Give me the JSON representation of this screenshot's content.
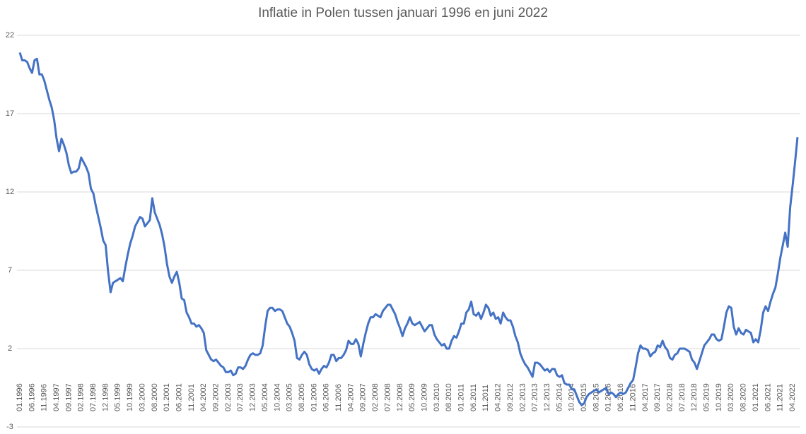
{
  "chart_data": {
    "type": "line",
    "title": "Inflatie in Polen tussen januari 1996 en juni 2022",
    "ylim": [
      -3,
      22
    ],
    "yticks": [
      -3,
      2,
      7,
      12,
      17,
      22
    ],
    "grid": true,
    "categories": [
      "01.1996",
      null,
      null,
      null,
      null,
      "06.1996",
      null,
      null,
      null,
      null,
      "11.1996",
      null,
      null,
      null,
      null,
      "04.1997",
      null,
      null,
      null,
      null,
      "09.1997",
      null,
      null,
      null,
      null,
      "02.1998",
      null,
      null,
      null,
      null,
      "07.1998",
      null,
      null,
      null,
      null,
      "12.1998",
      null,
      null,
      null,
      null,
      "05.1999",
      null,
      null,
      null,
      null,
      "10.1999",
      null,
      null,
      null,
      null,
      "03.2000",
      null,
      null,
      null,
      null,
      "08.2000",
      null,
      null,
      null,
      null,
      "01.2001",
      null,
      null,
      null,
      null,
      "06.2001",
      null,
      null,
      null,
      null,
      "11.2001",
      null,
      null,
      null,
      null,
      "04.2002",
      null,
      null,
      null,
      null,
      "09.2002",
      null,
      null,
      null,
      null,
      "02.2003",
      null,
      null,
      null,
      null,
      "07.2003",
      null,
      null,
      null,
      null,
      "12.2003",
      null,
      null,
      null,
      null,
      "05.2004",
      null,
      null,
      null,
      null,
      "10.2004",
      null,
      null,
      null,
      null,
      "03.2005",
      null,
      null,
      null,
      null,
      "08.2005",
      null,
      null,
      null,
      null,
      "01.2006",
      null,
      null,
      null,
      null,
      "06.2006",
      null,
      null,
      null,
      null,
      "11.2006",
      null,
      null,
      null,
      null,
      "04.2007",
      null,
      null,
      null,
      null,
      "09.2007",
      null,
      null,
      null,
      null,
      "02.2008",
      null,
      null,
      null,
      null,
      "07.2008",
      null,
      null,
      null,
      null,
      "12.2008",
      null,
      null,
      null,
      null,
      "05.2009",
      null,
      null,
      null,
      null,
      "10.2009",
      null,
      null,
      null,
      null,
      "03.2010",
      null,
      null,
      null,
      null,
      "08.2010",
      null,
      null,
      null,
      null,
      "01.2011",
      null,
      null,
      null,
      null,
      "06.2011",
      null,
      null,
      null,
      null,
      "11.2011",
      null,
      null,
      null,
      null,
      "04.2012",
      null,
      null,
      null,
      null,
      "09.2012",
      null,
      null,
      null,
      null,
      "02.2013",
      null,
      null,
      null,
      null,
      "07.2013",
      null,
      null,
      null,
      null,
      "12.2013",
      null,
      null,
      null,
      null,
      "05.2014",
      null,
      null,
      null,
      null,
      "10.2014",
      null,
      null,
      null,
      null,
      "03.2015",
      null,
      null,
      null,
      null,
      "08.2015",
      null,
      null,
      null,
      null,
      "01.2016",
      null,
      null,
      null,
      null,
      "06.2016",
      null,
      null,
      null,
      null,
      "11.2016",
      null,
      null,
      null,
      null,
      "04.2017",
      null,
      null,
      null,
      null,
      "09.2017",
      null,
      null,
      null,
      null,
      "02.2018",
      null,
      null,
      null,
      null,
      "07.2018",
      null,
      null,
      null,
      null,
      "12.2018",
      null,
      null,
      null,
      null,
      "05.2019",
      null,
      null,
      null,
      null,
      "10.2019",
      null,
      null,
      null,
      null,
      "03.2020",
      null,
      null,
      null,
      null,
      "08.2020",
      null,
      null,
      null,
      null,
      "01.2021",
      null,
      null,
      null,
      null,
      "06.2021",
      null,
      null,
      null,
      null,
      "11.2021",
      null,
      null,
      null,
      null,
      "04.2022",
      null,
      null
    ],
    "series": [
      {
        "color": "#4472c4",
        "values": [
          20.9,
          20.4,
          20.4,
          20.3,
          19.9,
          19.6,
          20.4,
          20.5,
          19.5,
          19.5,
          19.1,
          18.5,
          17.9,
          17.4,
          16.6,
          15.4,
          14.6,
          15.4,
          15.0,
          14.5,
          13.7,
          13.2,
          13.3,
          13.3,
          13.5,
          14.2,
          13.9,
          13.6,
          13.2,
          12.2,
          11.9,
          11.1,
          10.4,
          9.7,
          8.9,
          8.6,
          6.9,
          5.6,
          6.2,
          6.3,
          6.4,
          6.5,
          6.3,
          7.2,
          8.0,
          8.7,
          9.2,
          9.8,
          10.1,
          10.4,
          10.3,
          9.8,
          10.0,
          10.2,
          11.6,
          10.7,
          10.3,
          9.9,
          9.3,
          8.5,
          7.4,
          6.6,
          6.2,
          6.6,
          6.9,
          6.2,
          5.2,
          5.1,
          4.3,
          4.0,
          3.6,
          3.6,
          3.4,
          3.5,
          3.3,
          3.0,
          1.9,
          1.6,
          1.3,
          1.2,
          1.3,
          1.1,
          0.9,
          0.8,
          0.5,
          0.5,
          0.6,
          0.3,
          0.4,
          0.8,
          0.8,
          0.7,
          0.9,
          1.3,
          1.6,
          1.7,
          1.6,
          1.6,
          1.7,
          2.2,
          3.4,
          4.4,
          4.6,
          4.6,
          4.4,
          4.5,
          4.5,
          4.4,
          4.0,
          3.6,
          3.4,
          3.0,
          2.5,
          1.4,
          1.3,
          1.6,
          1.8,
          1.6,
          1.0,
          0.7,
          0.6,
          0.7,
          0.4,
          0.7,
          0.9,
          0.8,
          1.1,
          1.6,
          1.6,
          1.2,
          1.4,
          1.4,
          1.6,
          1.9,
          2.5,
          2.3,
          2.3,
          2.6,
          2.3,
          1.5,
          2.3,
          3.0,
          3.6,
          4.0,
          4.0,
          4.2,
          4.1,
          4.0,
          4.4,
          4.6,
          4.8,
          4.8,
          4.5,
          4.2,
          3.7,
          3.3,
          2.8,
          3.3,
          3.6,
          4.0,
          3.6,
          3.5,
          3.6,
          3.7,
          3.4,
          3.1,
          3.3,
          3.5,
          3.5,
          2.9,
          2.6,
          2.4,
          2.2,
          2.3,
          2.0,
          2.0,
          2.5,
          2.8,
          2.7,
          3.1,
          3.6,
          3.6,
          4.3,
          4.5,
          5.0,
          4.2,
          4.1,
          4.3,
          3.9,
          4.3,
          4.8,
          4.6,
          4.1,
          4.3,
          3.9,
          4.0,
          3.6,
          4.3,
          4.0,
          3.8,
          3.8,
          3.4,
          2.8,
          2.4,
          1.7,
          1.3,
          1.0,
          0.8,
          0.5,
          0.2,
          1.1,
          1.1,
          1.0,
          0.8,
          0.6,
          0.7,
          0.5,
          0.7,
          0.7,
          0.3,
          0.2,
          0.3,
          -0.2,
          -0.3,
          -0.3,
          -0.6,
          -0.6,
          -1.0,
          -1.4,
          -1.6,
          -1.5,
          -1.1,
          -0.9,
          -0.8,
          -0.7,
          -0.6,
          -0.8,
          -0.7,
          -0.6,
          -0.5,
          -0.9,
          -0.8,
          -0.9,
          -1.1,
          -0.9,
          -0.8,
          -0.9,
          -0.8,
          -0.5,
          -0.2,
          0.0,
          0.8,
          1.7,
          2.2,
          2.0,
          2.0,
          1.9,
          1.5,
          1.7,
          1.8,
          2.2,
          2.1,
          2.5,
          2.1,
          1.9,
          1.4,
          1.3,
          1.6,
          1.7,
          2.0,
          2.0,
          2.0,
          1.9,
          1.8,
          1.3,
          1.1,
          0.7,
          1.2,
          1.7,
          2.2,
          2.4,
          2.6,
          2.9,
          2.9,
          2.6,
          2.5,
          2.6,
          3.4,
          4.3,
          4.7,
          4.6,
          3.4,
          2.9,
          3.3,
          3.0,
          2.9,
          3.2,
          3.1,
          3.0,
          2.4,
          2.6,
          2.4,
          3.2,
          4.3,
          4.7,
          4.4,
          5.0,
          5.5,
          5.9,
          6.8,
          7.8,
          8.6,
          9.4,
          8.5,
          11.0,
          12.4,
          13.9,
          15.5
        ]
      }
    ]
  }
}
